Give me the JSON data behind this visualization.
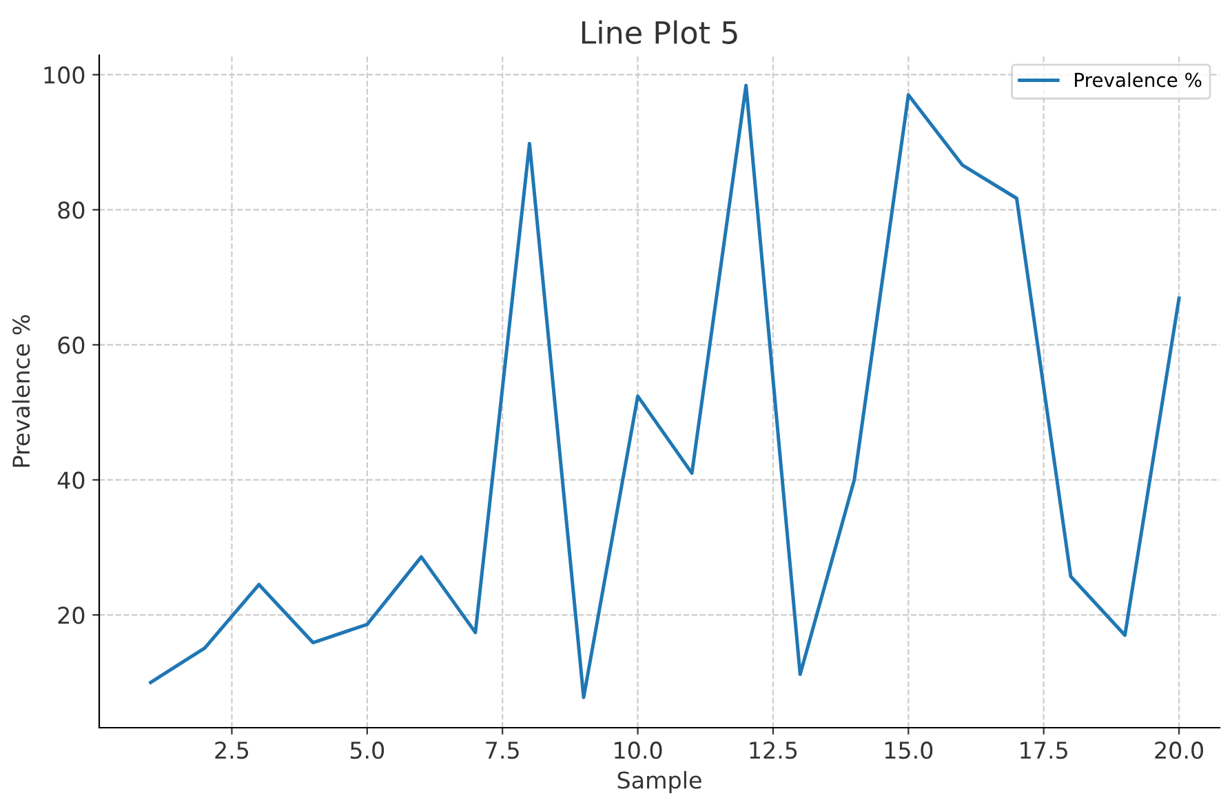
{
  "chart_data": {
    "type": "line",
    "title": "Line Plot 5",
    "xlabel": "Sample",
    "ylabel": "Prevalence %",
    "x": [
      1,
      2,
      3,
      4,
      5,
      6,
      7,
      8,
      9,
      10,
      11,
      12,
      13,
      14,
      15,
      16,
      17,
      18,
      19,
      20
    ],
    "series": [
      {
        "name": "Prevalence %",
        "color": "#1f77b4",
        "values": [
          10.0,
          15.1,
          24.5,
          15.9,
          18.6,
          28.6,
          17.4,
          89.8,
          7.8,
          52.4,
          41.0,
          98.4,
          11.2,
          40.0,
          97.0,
          86.6,
          81.7,
          25.7,
          17.0,
          66.9
        ]
      }
    ],
    "xlim": [
      0.05,
      20.75
    ],
    "ylim": [
      3.3,
      102.9
    ],
    "xticks": [
      {
        "value": 2.5,
        "label": "2.5"
      },
      {
        "value": 5,
        "label": "5.0"
      },
      {
        "value": 7.5,
        "label": "7.5"
      },
      {
        "value": 10,
        "label": "10.0"
      },
      {
        "value": 12.5,
        "label": "12.5"
      },
      {
        "value": 15,
        "label": "15.0"
      },
      {
        "value": 17.5,
        "label": "17.5"
      },
      {
        "value": 20,
        "label": "20.0"
      }
    ],
    "yticks": [
      20,
      40,
      60,
      80,
      100
    ],
    "grid": true,
    "legend": "top right",
    "marker": "none",
    "line_style": "solid"
  }
}
